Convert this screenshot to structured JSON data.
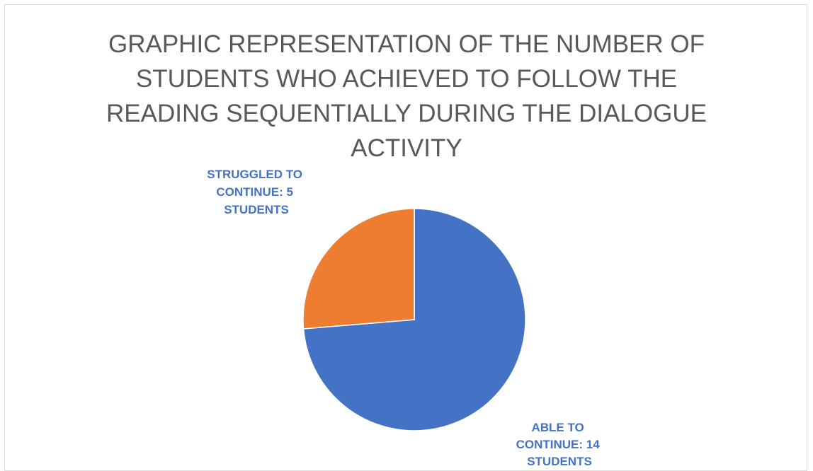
{
  "chart_data": {
    "type": "pie",
    "title_lines": [
      "GRAPHIC REPRESENTATION OF THE NUMBER OF",
      "STUDENTS WHO ACHIEVED TO FOLLOW THE",
      "READING SEQUENTIALLY DURING THE DIALOGUE",
      "ACTIVITY"
    ],
    "slices": [
      {
        "category": "ABLE TO CONTINUE",
        "value": 14,
        "label_lines": [
          "ABLE TO",
          "CONTINUE: 14",
          "STUDENTS"
        ],
        "color": "#4472c4"
      },
      {
        "category": "STRUGGLED TO CONTINUE",
        "value": 5,
        "label_lines": [
          "STRUGGLED TO",
          "CONTINUE: 5",
          "STUDENTS"
        ],
        "color": "#ed7d31"
      }
    ],
    "legend": "none"
  }
}
